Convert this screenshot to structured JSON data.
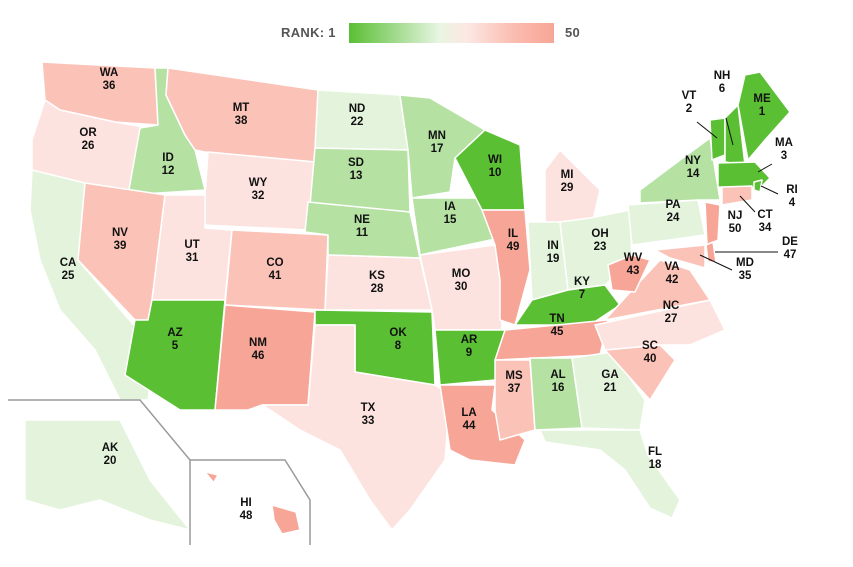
{
  "legend": {
    "min_label": "RANK: 1",
    "max_label": "50",
    "colors": {
      "best": "#5bbf34",
      "mid_green": "#b5e1a3",
      "light_green": "#e3f3dc",
      "light_red": "#fde3df",
      "mid_red": "#fbc2b8",
      "worst": "#f7a596"
    }
  },
  "states": [
    {
      "abbr": "WA",
      "rank": "36"
    },
    {
      "abbr": "OR",
      "rank": "26"
    },
    {
      "abbr": "CA",
      "rank": "25"
    },
    {
      "abbr": "ID",
      "rank": "12"
    },
    {
      "abbr": "NV",
      "rank": "39"
    },
    {
      "abbr": "MT",
      "rank": "38"
    },
    {
      "abbr": "WY",
      "rank": "32"
    },
    {
      "abbr": "UT",
      "rank": "31"
    },
    {
      "abbr": "AZ",
      "rank": "5"
    },
    {
      "abbr": "CO",
      "rank": "41"
    },
    {
      "abbr": "NM",
      "rank": "46"
    },
    {
      "abbr": "ND",
      "rank": "22"
    },
    {
      "abbr": "SD",
      "rank": "13"
    },
    {
      "abbr": "NE",
      "rank": "11"
    },
    {
      "abbr": "KS",
      "rank": "28"
    },
    {
      "abbr": "OK",
      "rank": "8"
    },
    {
      "abbr": "TX",
      "rank": "33"
    },
    {
      "abbr": "MN",
      "rank": "17"
    },
    {
      "abbr": "IA",
      "rank": "15"
    },
    {
      "abbr": "MO",
      "rank": "30"
    },
    {
      "abbr": "AR",
      "rank": "9"
    },
    {
      "abbr": "LA",
      "rank": "44"
    },
    {
      "abbr": "WI",
      "rank": "10"
    },
    {
      "abbr": "IL",
      "rank": "49"
    },
    {
      "abbr": "MI",
      "rank": "29"
    },
    {
      "abbr": "IN",
      "rank": "19"
    },
    {
      "abbr": "OH",
      "rank": "23"
    },
    {
      "abbr": "KY",
      "rank": "7"
    },
    {
      "abbr": "TN",
      "rank": "45"
    },
    {
      "abbr": "MS",
      "rank": "37"
    },
    {
      "abbr": "AL",
      "rank": "16"
    },
    {
      "abbr": "GA",
      "rank": "21"
    },
    {
      "abbr": "FL",
      "rank": "18"
    },
    {
      "abbr": "SC",
      "rank": "40"
    },
    {
      "abbr": "NC",
      "rank": "27"
    },
    {
      "abbr": "VA",
      "rank": "42"
    },
    {
      "abbr": "WV",
      "rank": "43"
    },
    {
      "abbr": "PA",
      "rank": "24"
    },
    {
      "abbr": "NY",
      "rank": "14"
    },
    {
      "abbr": "VT",
      "rank": "2"
    },
    {
      "abbr": "NH",
      "rank": "6"
    },
    {
      "abbr": "ME",
      "rank": "1"
    },
    {
      "abbr": "MA",
      "rank": "3"
    },
    {
      "abbr": "RI",
      "rank": "4"
    },
    {
      "abbr": "CT",
      "rank": "34"
    },
    {
      "abbr": "NJ",
      "rank": "50"
    },
    {
      "abbr": "DE",
      "rank": "47"
    },
    {
      "abbr": "MD",
      "rank": "35"
    },
    {
      "abbr": "AK",
      "rank": "20"
    },
    {
      "abbr": "HI",
      "rank": "48"
    }
  ]
}
